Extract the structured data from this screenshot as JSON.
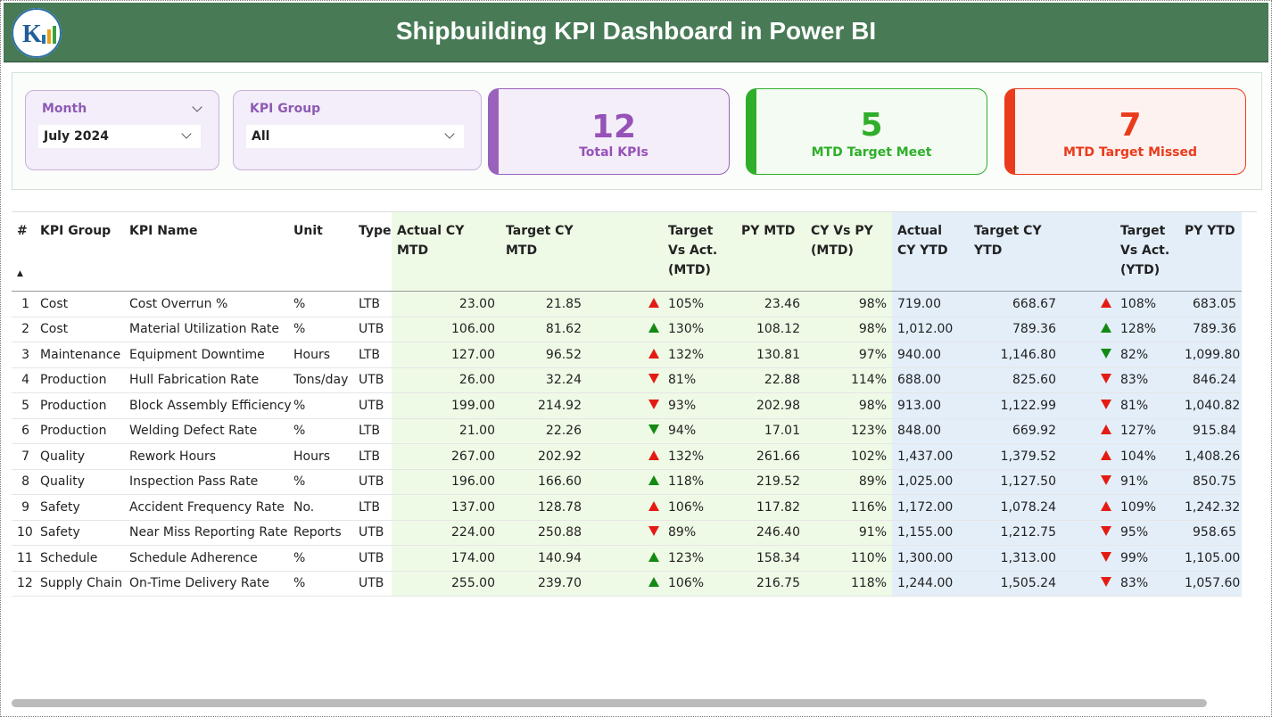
{
  "header": {
    "title": "Shipbuilding KPI Dashboard in Power BI"
  },
  "filters": [
    {
      "label": "Month",
      "value": "July 2024"
    },
    {
      "label": "KPI Group",
      "value": "All"
    }
  ],
  "cards": [
    {
      "value": "12",
      "label": "Total KPIs"
    },
    {
      "value": "5",
      "label": "MTD Target Meet"
    },
    {
      "value": "7",
      "label": "MTD Target Missed"
    }
  ],
  "table": {
    "headers": [
      "#",
      "KPI Group",
      "KPI Name",
      "Unit",
      "Type",
      "Actual CY MTD",
      "Target CY MTD",
      "Target Vs Act. (MTD)",
      "PY MTD",
      "CY Vs PY (MTD)",
      "Actual CY YTD",
      "Target CY YTD",
      "Target Vs Act. (YTD)",
      "PY YTD"
    ],
    "rows": [
      [
        "1",
        "Cost",
        "Cost Overrun %",
        "%",
        "LTB",
        "23.00",
        "21.85",
        "105%",
        "23.46",
        "98%",
        "719.00",
        "668.67",
        "108%",
        "683.05"
      ],
      [
        "2",
        "Cost",
        "Material Utilization Rate",
        "%",
        "UTB",
        "106.00",
        "81.62",
        "130%",
        "108.12",
        "98%",
        "1,012.00",
        "789.36",
        "128%",
        "789.36"
      ],
      [
        "3",
        "Maintenance",
        "Equipment Downtime",
        "Hours",
        "LTB",
        "127.00",
        "96.52",
        "132%",
        "130.81",
        "97%",
        "940.00",
        "1,146.80",
        "82%",
        "1,099.80"
      ],
      [
        "4",
        "Production",
        "Hull Fabrication Rate",
        "Tons/day",
        "UTB",
        "26.00",
        "32.24",
        "81%",
        "22.88",
        "114%",
        "688.00",
        "825.60",
        "83%",
        "846.24"
      ],
      [
        "5",
        "Production",
        "Block Assembly Efficiency",
        "%",
        "UTB",
        "199.00",
        "214.92",
        "93%",
        "202.98",
        "98%",
        "913.00",
        "1,122.99",
        "81%",
        "1,040.82"
      ],
      [
        "6",
        "Production",
        "Welding Defect Rate",
        "%",
        "LTB",
        "21.00",
        "22.26",
        "94%",
        "17.01",
        "123%",
        "848.00",
        "669.92",
        "127%",
        "915.84"
      ],
      [
        "7",
        "Quality",
        "Rework Hours",
        "Hours",
        "LTB",
        "267.00",
        "202.92",
        "132%",
        "261.66",
        "102%",
        "1,437.00",
        "1,379.52",
        "104%",
        "1,408.26"
      ],
      [
        "8",
        "Quality",
        "Inspection Pass Rate",
        "%",
        "UTB",
        "196.00",
        "166.60",
        "118%",
        "219.52",
        "89%",
        "1,025.00",
        "1,127.50",
        "91%",
        "850.75"
      ],
      [
        "9",
        "Safety",
        "Accident Frequency Rate",
        "No.",
        "LTB",
        "137.00",
        "128.78",
        "106%",
        "117.82",
        "116%",
        "1,172.00",
        "1,078.24",
        "109%",
        "1,242.32"
      ],
      [
        "10",
        "Safety",
        "Near Miss Reporting Rate",
        "Reports",
        "UTB",
        "224.00",
        "250.88",
        "89%",
        "246.40",
        "91%",
        "1,155.00",
        "1,212.75",
        "95%",
        "958.65"
      ],
      [
        "11",
        "Schedule",
        "Schedule Adherence",
        "%",
        "UTB",
        "174.00",
        "140.94",
        "123%",
        "158.34",
        "110%",
        "1,300.00",
        "1,313.00",
        "99%",
        "1,105.00"
      ],
      [
        "12",
        "Supply Chain",
        "On-Time Delivery Rate",
        "%",
        "UTB",
        "255.00",
        "239.70",
        "106%",
        "216.75",
        "118%",
        "1,244.00",
        "1,505.24",
        "83%",
        "1,057.60"
      ]
    ]
  }
}
